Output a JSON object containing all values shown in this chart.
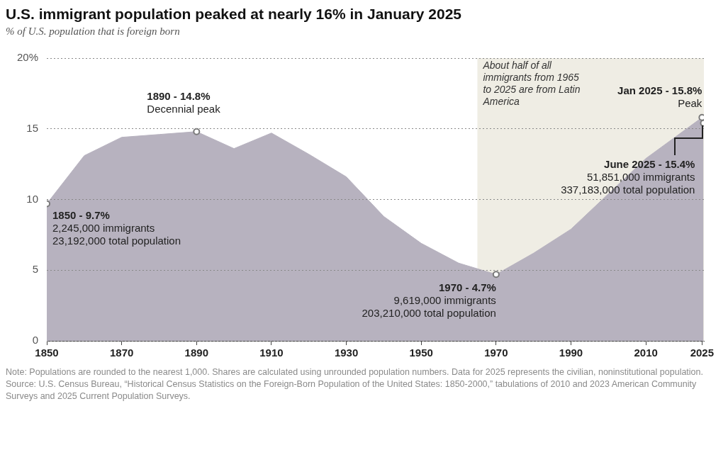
{
  "chart_data": {
    "type": "area",
    "title": "U.S. immigrant population peaked at nearly 16% in January 2025",
    "subtitle": "% of U.S. population that is foreign born",
    "x": [
      1850,
      1860,
      1870,
      1880,
      1890,
      1900,
      1910,
      1920,
      1930,
      1940,
      1950,
      1960,
      1970,
      1980,
      1990,
      2000,
      2010,
      2025,
      2025.4
    ],
    "series": [
      {
        "color": "#b7b2bf",
        "values": [
          9.7,
          13.1,
          14.4,
          14.6,
          14.8,
          13.6,
          14.7,
          13.2,
          11.6,
          8.8,
          6.9,
          5.5,
          4.7,
          6.2,
          7.9,
          10.4,
          12.9,
          15.8,
          15.4
        ]
      },
      {
        "type": "scatter",
        "color": "#7a7a7a",
        "marker": "circle",
        "x": [
          1850,
          1890,
          1970,
          2025,
          2025.4
        ],
        "values": [
          9.7,
          14.8,
          4.7,
          15.8,
          15.4
        ]
      }
    ],
    "xlim": [
      1850,
      2025.5
    ],
    "xticks": [
      1850,
      1870,
      1890,
      1910,
      1930,
      1950,
      1970,
      1990,
      2010,
      2025
    ],
    "ylim": [
      0,
      20
    ],
    "yticks": [
      0,
      5,
      10,
      15,
      {
        "value": 20,
        "label": "20%"
      }
    ],
    "grid": "y",
    "bands": [
      {
        "axis": "x",
        "from": 1965,
        "to": 2025.5,
        "color": "#efede4",
        "label": "About half of all immigrants from 1965 to 2025 are from Latin America"
      }
    ],
    "annotations": [
      {
        "text": "1850 - 9.7%\n2,245,000 immigrants\n23,192,000 total population",
        "x": 1850,
        "y": 9.7
      },
      {
        "text": "1890 - 14.8%\nDecennial peak",
        "x": 1890,
        "y": 14.8
      },
      {
        "text": "1970 - 4.7%\n9,619,000 immigrants\n203,210,000 total population",
        "x": 1970,
        "y": 4.7
      },
      {
        "text": "Jan 2025 - 15.8%\nPeak",
        "x": 2025,
        "y": 15.8
      },
      {
        "text": "June 2025 - 15.4%\n51,851,000 immigrants\n337,183,000 total population",
        "x": 2025.4,
        "y": 15.4
      },
      "Note: Populations are rounded to the nearest 1,000. Shares are calculated using unrounded population numbers. Data for 2025 represents the civilian, noninstitutional population.",
      "Source: U.S. Census Bureau, “Historical Census Statistics on the Foreign-Born Population of the United States: 1850-2000,” tabulations of 2010 and 2023 American Community Surveys and 2025 Current Population Surveys."
    ]
  }
}
